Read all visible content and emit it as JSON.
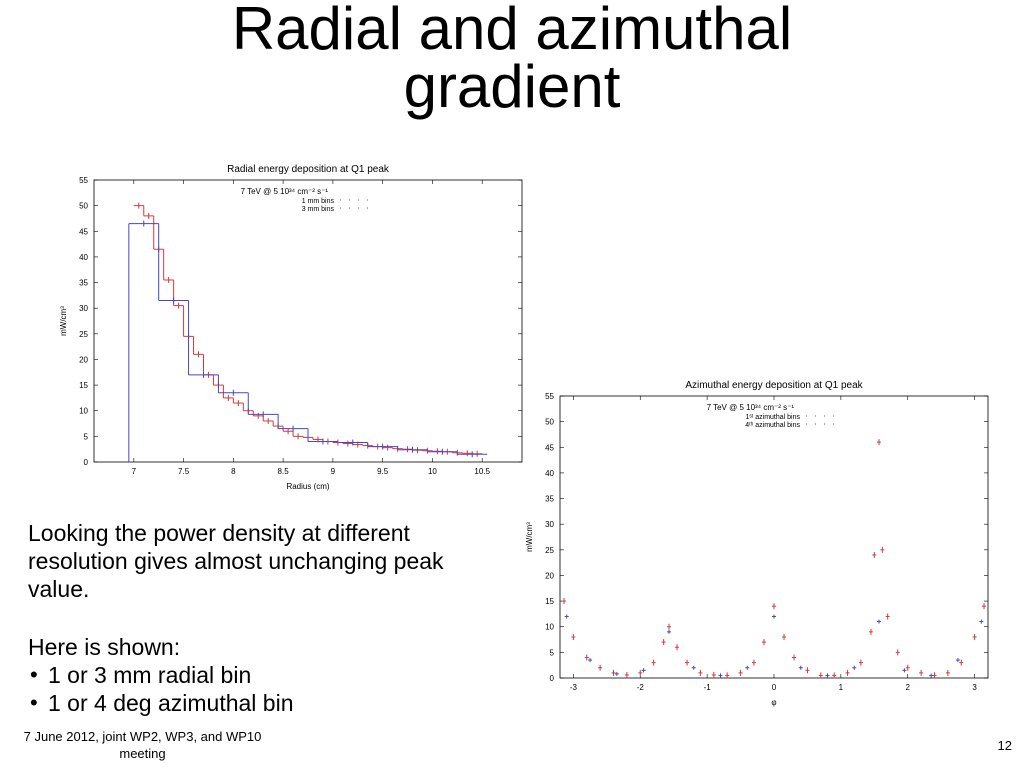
{
  "slide": {
    "title_line1": "Radial and azimuthal",
    "title_line2": "gradient",
    "body": {
      "para1": "Looking the power density at different resolution gives almost unchanging peak value.",
      "para2": "Here is shown:",
      "bullets": [
        "1 or 3 mm radial bin",
        "1 or 4 deg azimuthal bin"
      ]
    },
    "footer": "7 June 2012, joint WP2, WP3, and WP10 meeting",
    "page_number": "12"
  },
  "chart_data": [
    {
      "type": "line",
      "style": "histogram",
      "title": "Radial energy deposition at Q1 peak",
      "xlabel": "Radius (cm)",
      "ylabel": "mW/cm³",
      "xlim": [
        6.6,
        10.9
      ],
      "ylim": [
        0,
        55
      ],
      "xticks": [
        "7",
        "7.5",
        "8",
        "8.5",
        "9",
        "9.5",
        "10",
        "10.5"
      ],
      "yticks": [
        "0",
        "5",
        "10",
        "15",
        "20",
        "25",
        "30",
        "35",
        "40",
        "45",
        "50",
        "55"
      ],
      "legend_title": "7 TeV @ 5 10³⁴ cm⁻² s⁻¹",
      "legend_position": "top-center",
      "series": [
        {
          "name": "1 mm bins",
          "color": "#d43a3a",
          "x": [
            7.05,
            7.15,
            7.25,
            7.35,
            7.45,
            7.55,
            7.65,
            7.75,
            7.85,
            7.95,
            8.05,
            8.15,
            8.25,
            8.35,
            8.45,
            8.55,
            8.65,
            8.75,
            8.85,
            8.95,
            9.05,
            9.15,
            9.25,
            9.35,
            9.45,
            9.55,
            9.65,
            9.75,
            9.85,
            9.95,
            10.05,
            10.15,
            10.25,
            10.35,
            10.45
          ],
          "y": [
            50,
            48,
            41.5,
            35.5,
            30.5,
            24.5,
            21,
            17,
            15,
            12.5,
            11.5,
            10,
            9,
            8,
            7,
            6,
            5,
            4.8,
            4.4,
            4,
            3.8,
            3.6,
            3.4,
            3.2,
            3.0,
            2.8,
            2.6,
            2.5,
            2.3,
            2.2,
            2.1,
            2.0,
            1.8,
            1.7,
            1.6
          ]
        },
        {
          "name": "3 mm bins",
          "color": "#4646c8",
          "x": [
            7.1,
            7.4,
            7.7,
            8.0,
            8.3,
            8.6,
            8.9,
            9.2,
            9.5,
            9.8,
            10.1,
            10.4
          ],
          "y": [
            46.5,
            31.5,
            17,
            13.5,
            9.3,
            6.5,
            4,
            3.8,
            3.0,
            2.4,
            2.0,
            1.5
          ]
        }
      ]
    },
    {
      "type": "scatter",
      "title": "Azimuthal energy deposition at Q1 peak",
      "xlabel": "φ",
      "ylabel": "mW/cm³",
      "xlim": [
        -3.2,
        3.2
      ],
      "ylim": [
        0,
        55
      ],
      "xticks": [
        "-3",
        "-2",
        "-1",
        "0",
        "1",
        "2",
        "3"
      ],
      "yticks": [
        "0",
        "5",
        "10",
        "15",
        "20",
        "25",
        "30",
        "35",
        "40",
        "45",
        "50",
        "55"
      ],
      "legend_title": "7 TeV @ 5 10³⁴ cm⁻² s⁻¹",
      "legend_position": "top-center",
      "series": [
        {
          "name": "1ˢᵗ azimuthal bins",
          "color": "#d43a3a",
          "x": [
            -3.14,
            -3.0,
            -2.8,
            -2.6,
            -2.4,
            -2.2,
            -2.0,
            -1.8,
            -1.65,
            -1.57,
            -1.45,
            -1.3,
            -1.1,
            -0.9,
            -0.7,
            -0.5,
            -0.3,
            -0.15,
            0.0,
            0.15,
            0.3,
            0.5,
            0.7,
            0.9,
            1.1,
            1.3,
            1.45,
            1.5,
            1.57,
            1.62,
            1.7,
            1.85,
            2.0,
            2.2,
            2.4,
            2.6,
            2.8,
            3.0,
            3.14
          ],
          "y": [
            15,
            8,
            4,
            2,
            1,
            0.6,
            1,
            3,
            7,
            10,
            6,
            3,
            1,
            0.6,
            0.5,
            1,
            3,
            7,
            14,
            8,
            4,
            1.5,
            0.5,
            0.5,
            1,
            3,
            9,
            24,
            46,
            25,
            12,
            5,
            2,
            1,
            0.5,
            1,
            3,
            8,
            14
          ]
        },
        {
          "name": "4ᵗʰ azimuthal bins",
          "color": "#4646c8",
          "x": [
            -3.1,
            -2.75,
            -2.35,
            -1.95,
            -1.57,
            -1.2,
            -0.8,
            -0.4,
            0.0,
            0.4,
            0.8,
            1.2,
            1.57,
            1.95,
            2.35,
            2.75,
            3.1
          ],
          "y": [
            12,
            3.5,
            0.8,
            1.5,
            9,
            2,
            0.5,
            2,
            12,
            2,
            0.5,
            2,
            11,
            1.5,
            0.5,
            3.5,
            11
          ]
        }
      ]
    }
  ]
}
